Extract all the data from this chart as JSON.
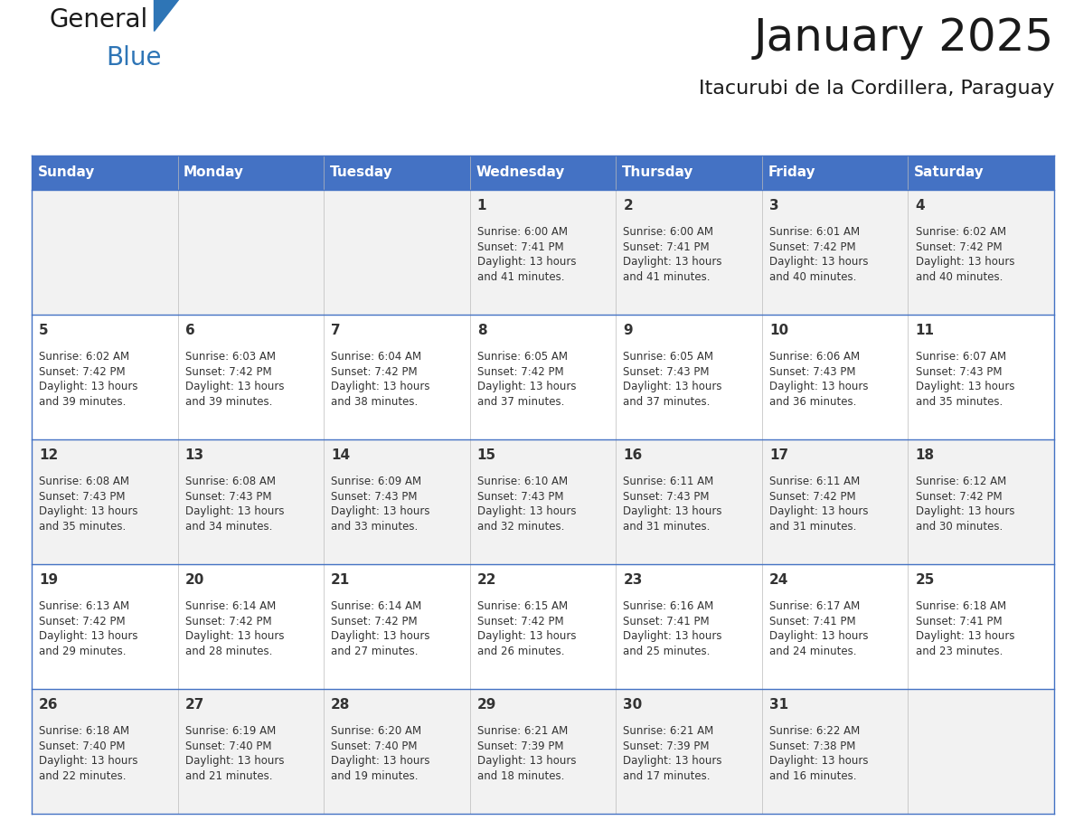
{
  "title": "January 2025",
  "subtitle": "Itacurubi de la Cordillera, Paraguay",
  "header_bg": "#4472C4",
  "header_text": "#FFFFFF",
  "border_color": "#4472C4",
  "row_colors": [
    "#F2F2F2",
    "#FFFFFF",
    "#F2F2F2",
    "#FFFFFF",
    "#F2F2F2"
  ],
  "day_names": [
    "Sunday",
    "Monday",
    "Tuesday",
    "Wednesday",
    "Thursday",
    "Friday",
    "Saturday"
  ],
  "title_color": "#1a1a1a",
  "subtitle_color": "#1a1a1a",
  "text_color": "#333333",
  "logo_general_color": "#1a1a1a",
  "logo_blue_color": "#2E75B6",
  "logo_triangle_color": "#2E75B6",
  "days": [
    {
      "day": 1,
      "col": 3,
      "row": 0,
      "sunrise": "6:00 AM",
      "sunset": "7:41 PM",
      "daylight": "13 hours",
      "daylight2": "and 41 minutes."
    },
    {
      "day": 2,
      "col": 4,
      "row": 0,
      "sunrise": "6:00 AM",
      "sunset": "7:41 PM",
      "daylight": "13 hours",
      "daylight2": "and 41 minutes."
    },
    {
      "day": 3,
      "col": 5,
      "row": 0,
      "sunrise": "6:01 AM",
      "sunset": "7:42 PM",
      "daylight": "13 hours",
      "daylight2": "and 40 minutes."
    },
    {
      "day": 4,
      "col": 6,
      "row": 0,
      "sunrise": "6:02 AM",
      "sunset": "7:42 PM",
      "daylight": "13 hours",
      "daylight2": "and 40 minutes."
    },
    {
      "day": 5,
      "col": 0,
      "row": 1,
      "sunrise": "6:02 AM",
      "sunset": "7:42 PM",
      "daylight": "13 hours",
      "daylight2": "and 39 minutes."
    },
    {
      "day": 6,
      "col": 1,
      "row": 1,
      "sunrise": "6:03 AM",
      "sunset": "7:42 PM",
      "daylight": "13 hours",
      "daylight2": "and 39 minutes."
    },
    {
      "day": 7,
      "col": 2,
      "row": 1,
      "sunrise": "6:04 AM",
      "sunset": "7:42 PM",
      "daylight": "13 hours",
      "daylight2": "and 38 minutes."
    },
    {
      "day": 8,
      "col": 3,
      "row": 1,
      "sunrise": "6:05 AM",
      "sunset": "7:42 PM",
      "daylight": "13 hours",
      "daylight2": "and 37 minutes."
    },
    {
      "day": 9,
      "col": 4,
      "row": 1,
      "sunrise": "6:05 AM",
      "sunset": "7:43 PM",
      "daylight": "13 hours",
      "daylight2": "and 37 minutes."
    },
    {
      "day": 10,
      "col": 5,
      "row": 1,
      "sunrise": "6:06 AM",
      "sunset": "7:43 PM",
      "daylight": "13 hours",
      "daylight2": "and 36 minutes."
    },
    {
      "day": 11,
      "col": 6,
      "row": 1,
      "sunrise": "6:07 AM",
      "sunset": "7:43 PM",
      "daylight": "13 hours",
      "daylight2": "and 35 minutes."
    },
    {
      "day": 12,
      "col": 0,
      "row": 2,
      "sunrise": "6:08 AM",
      "sunset": "7:43 PM",
      "daylight": "13 hours",
      "daylight2": "and 35 minutes."
    },
    {
      "day": 13,
      "col": 1,
      "row": 2,
      "sunrise": "6:08 AM",
      "sunset": "7:43 PM",
      "daylight": "13 hours",
      "daylight2": "and 34 minutes."
    },
    {
      "day": 14,
      "col": 2,
      "row": 2,
      "sunrise": "6:09 AM",
      "sunset": "7:43 PM",
      "daylight": "13 hours",
      "daylight2": "and 33 minutes."
    },
    {
      "day": 15,
      "col": 3,
      "row": 2,
      "sunrise": "6:10 AM",
      "sunset": "7:43 PM",
      "daylight": "13 hours",
      "daylight2": "and 32 minutes."
    },
    {
      "day": 16,
      "col": 4,
      "row": 2,
      "sunrise": "6:11 AM",
      "sunset": "7:43 PM",
      "daylight": "13 hours",
      "daylight2": "and 31 minutes."
    },
    {
      "day": 17,
      "col": 5,
      "row": 2,
      "sunrise": "6:11 AM",
      "sunset": "7:42 PM",
      "daylight": "13 hours",
      "daylight2": "and 31 minutes."
    },
    {
      "day": 18,
      "col": 6,
      "row": 2,
      "sunrise": "6:12 AM",
      "sunset": "7:42 PM",
      "daylight": "13 hours",
      "daylight2": "and 30 minutes."
    },
    {
      "day": 19,
      "col": 0,
      "row": 3,
      "sunrise": "6:13 AM",
      "sunset": "7:42 PM",
      "daylight": "13 hours",
      "daylight2": "and 29 minutes."
    },
    {
      "day": 20,
      "col": 1,
      "row": 3,
      "sunrise": "6:14 AM",
      "sunset": "7:42 PM",
      "daylight": "13 hours",
      "daylight2": "and 28 minutes."
    },
    {
      "day": 21,
      "col": 2,
      "row": 3,
      "sunrise": "6:14 AM",
      "sunset": "7:42 PM",
      "daylight": "13 hours",
      "daylight2": "and 27 minutes."
    },
    {
      "day": 22,
      "col": 3,
      "row": 3,
      "sunrise": "6:15 AM",
      "sunset": "7:42 PM",
      "daylight": "13 hours",
      "daylight2": "and 26 minutes."
    },
    {
      "day": 23,
      "col": 4,
      "row": 3,
      "sunrise": "6:16 AM",
      "sunset": "7:41 PM",
      "daylight": "13 hours",
      "daylight2": "and 25 minutes."
    },
    {
      "day": 24,
      "col": 5,
      "row": 3,
      "sunrise": "6:17 AM",
      "sunset": "7:41 PM",
      "daylight": "13 hours",
      "daylight2": "and 24 minutes."
    },
    {
      "day": 25,
      "col": 6,
      "row": 3,
      "sunrise": "6:18 AM",
      "sunset": "7:41 PM",
      "daylight": "13 hours",
      "daylight2": "and 23 minutes."
    },
    {
      "day": 26,
      "col": 0,
      "row": 4,
      "sunrise": "6:18 AM",
      "sunset": "7:40 PM",
      "daylight": "13 hours",
      "daylight2": "and 22 minutes."
    },
    {
      "day": 27,
      "col": 1,
      "row": 4,
      "sunrise": "6:19 AM",
      "sunset": "7:40 PM",
      "daylight": "13 hours",
      "daylight2": "and 21 minutes."
    },
    {
      "day": 28,
      "col": 2,
      "row": 4,
      "sunrise": "6:20 AM",
      "sunset": "7:40 PM",
      "daylight": "13 hours",
      "daylight2": "and 19 minutes."
    },
    {
      "day": 29,
      "col": 3,
      "row": 4,
      "sunrise": "6:21 AM",
      "sunset": "7:39 PM",
      "daylight": "13 hours",
      "daylight2": "and 18 minutes."
    },
    {
      "day": 30,
      "col": 4,
      "row": 4,
      "sunrise": "6:21 AM",
      "sunset": "7:39 PM",
      "daylight": "13 hours",
      "daylight2": "and 17 minutes."
    },
    {
      "day": 31,
      "col": 5,
      "row": 4,
      "sunrise": "6:22 AM",
      "sunset": "7:38 PM",
      "daylight": "13 hours",
      "daylight2": "and 16 minutes."
    }
  ]
}
